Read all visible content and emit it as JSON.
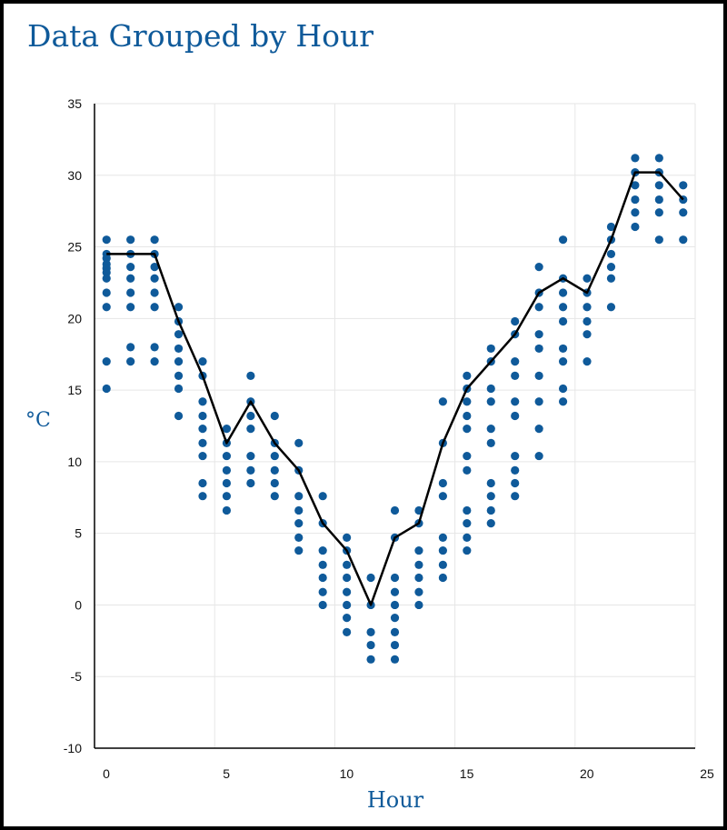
{
  "chart_data": {
    "type": "scatter",
    "title": "Data Grouped by Hour",
    "xlabel": "Hour",
    "ylabel": "°C",
    "xlim": [
      0,
      25
    ],
    "ylim": [
      -10,
      35
    ],
    "xticks": [
      "0",
      "5",
      "10",
      "15",
      "20",
      "25"
    ],
    "yticks": [
      "35",
      "30",
      "25",
      "20",
      "15",
      "10",
      "5",
      "0",
      "-5",
      "-10"
    ],
    "grid": true,
    "legend": "none",
    "colors": {
      "points": "#0f5a9a",
      "line": "#000000",
      "grid": "#e6e6e6",
      "text": "#0f5a9a"
    },
    "points": [
      {
        "hour": 0.5,
        "temps": [
          25.5,
          24.5,
          24.2,
          23.8,
          23.5,
          23.2,
          22.8,
          21.8,
          20.8,
          17,
          15.1
        ]
      },
      {
        "hour": 1.5,
        "temps": [
          25.5,
          24.5,
          23.6,
          22.8,
          21.8,
          20.8,
          18,
          17
        ]
      },
      {
        "hour": 2.5,
        "temps": [
          25.5,
          24.5,
          23.6,
          22.8,
          21.8,
          20.8,
          18,
          17
        ]
      },
      {
        "hour": 3.5,
        "temps": [
          20.8,
          19.8,
          18.9,
          17.9,
          17,
          16,
          15.1,
          13.2
        ]
      },
      {
        "hour": 4.5,
        "temps": [
          17,
          16,
          14.2,
          13.2,
          12.3,
          11.3,
          10.4,
          8.5,
          7.6
        ]
      },
      {
        "hour": 5.5,
        "temps": [
          12.3,
          11.3,
          10.4,
          9.4,
          8.5,
          7.6,
          6.6
        ]
      },
      {
        "hour": 6.5,
        "temps": [
          16,
          14.2,
          13.2,
          12.3,
          10.4,
          9.4,
          8.5
        ]
      },
      {
        "hour": 7.5,
        "temps": [
          13.2,
          11.3,
          10.4,
          9.4,
          8.5,
          7.6
        ]
      },
      {
        "hour": 8.5,
        "temps": [
          11.3,
          9.4,
          7.6,
          6.6,
          5.7,
          4.7,
          3.8
        ]
      },
      {
        "hour": 9.5,
        "temps": [
          7.6,
          5.7,
          3.8,
          2.8,
          1.9,
          0.9,
          0
        ]
      },
      {
        "hour": 10.5,
        "temps": [
          4.7,
          3.8,
          2.8,
          1.9,
          0.9,
          0,
          -0.9,
          -1.9
        ]
      },
      {
        "hour": 11.5,
        "temps": [
          1.9,
          0,
          -1.9,
          -2.8,
          -3.8
        ]
      },
      {
        "hour": 12.5,
        "temps": [
          6.6,
          4.7,
          1.9,
          0.9,
          0,
          -0.9,
          -1.9,
          -2.8,
          -3.8
        ]
      },
      {
        "hour": 13.5,
        "temps": [
          6.6,
          5.7,
          3.8,
          2.8,
          1.9,
          0.9,
          0
        ]
      },
      {
        "hour": 14.5,
        "temps": [
          14.2,
          11.3,
          8.5,
          7.6,
          4.7,
          3.8,
          2.8,
          1.9
        ]
      },
      {
        "hour": 15.5,
        "temps": [
          16,
          15.1,
          14.2,
          13.2,
          12.3,
          10.4,
          9.4,
          6.6,
          5.7,
          4.7,
          3.8
        ]
      },
      {
        "hour": 16.5,
        "temps": [
          17.9,
          17,
          15.1,
          14.2,
          12.3,
          11.3,
          8.5,
          7.6,
          6.6,
          5.7
        ]
      },
      {
        "hour": 17.5,
        "temps": [
          19.8,
          18.9,
          17,
          16,
          14.2,
          13.2,
          10.4,
          9.4,
          8.5,
          7.6
        ]
      },
      {
        "hour": 18.5,
        "temps": [
          23.6,
          21.8,
          20.8,
          18.9,
          17.9,
          16,
          14.2,
          12.3,
          10.4
        ]
      },
      {
        "hour": 19.5,
        "temps": [
          25.5,
          22.8,
          21.8,
          20.8,
          19.8,
          17.9,
          17,
          15.1,
          14.2
        ]
      },
      {
        "hour": 20.5,
        "temps": [
          22.8,
          21.8,
          20.8,
          19.8,
          18.9,
          17
        ]
      },
      {
        "hour": 21.5,
        "temps": [
          26.4,
          25.5,
          24.5,
          23.6,
          22.8,
          20.8
        ]
      },
      {
        "hour": 22.5,
        "temps": [
          31.2,
          30.2,
          29.3,
          28.3,
          27.4,
          26.4
        ]
      },
      {
        "hour": 23.5,
        "temps": [
          31.2,
          30.2,
          29.3,
          28.3,
          27.4,
          25.5
        ]
      },
      {
        "hour": 24.5,
        "temps": [
          29.3,
          28.3,
          27.4,
          25.5
        ]
      }
    ],
    "average_line": {
      "x": [
        0.5,
        1.5,
        2.5,
        3.5,
        4.5,
        5.5,
        6.5,
        7.5,
        8.5,
        9.5,
        10.5,
        11.5,
        12.5,
        13.5,
        14.5,
        15.5,
        16.5,
        17.5,
        18.5,
        19.5,
        20.5,
        21.5,
        22.5,
        23.5,
        24.5
      ],
      "y": [
        24.5,
        24.5,
        24.5,
        19.8,
        16.0,
        11.3,
        14.2,
        11.3,
        9.4,
        5.7,
        3.8,
        0.0,
        4.7,
        5.7,
        11.3,
        15.1,
        17.0,
        18.9,
        21.8,
        22.8,
        21.8,
        25.5,
        30.2,
        30.2,
        28.3
      ]
    }
  }
}
